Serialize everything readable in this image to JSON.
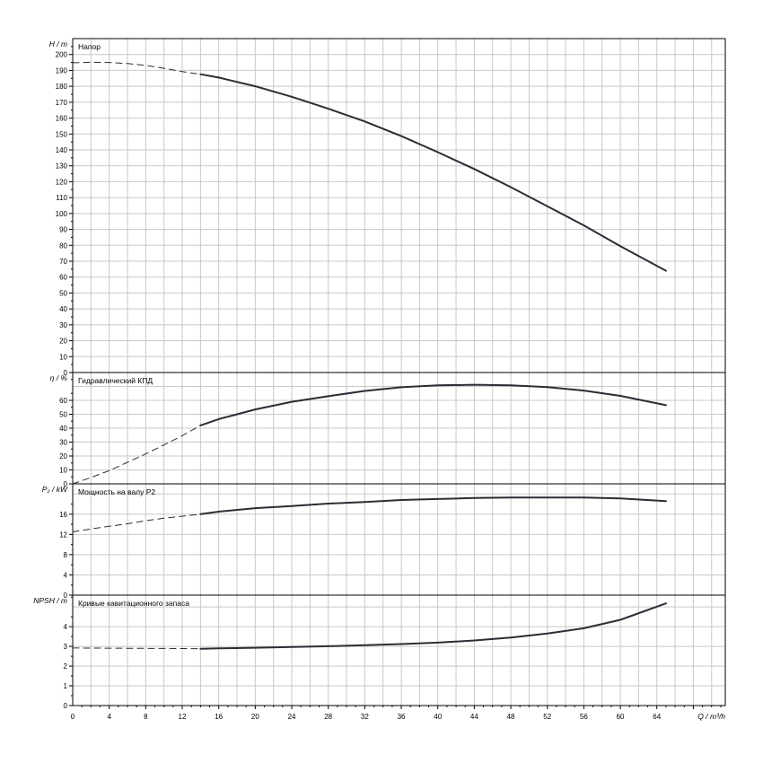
{
  "colors": {
    "background": "#ffffff",
    "grid": "#c8c8c8",
    "frame": "#000000",
    "curve": "#2b2d36"
  },
  "chart_data": [
    {
      "type": "line",
      "title": "Напор",
      "ylabel": "H / m",
      "xlabel": "Q / m³/h",
      "xlim": [
        0,
        71.5
      ],
      "ylim": [
        0,
        210
      ],
      "x_ticks": [
        0,
        4,
        8,
        12,
        16,
        20,
        24,
        28,
        32,
        36,
        40,
        44,
        48,
        52,
        56,
        60,
        64
      ],
      "y_ticks": [
        0,
        10,
        20,
        30,
        40,
        50,
        60,
        70,
        80,
        90,
        100,
        110,
        120,
        130,
        140,
        150,
        160,
        170,
        180,
        190,
        200
      ],
      "grid": true,
      "series": [
        {
          "style": "dashed",
          "x": [
            0,
            2,
            4,
            6,
            8,
            10,
            12,
            14
          ],
          "y": [
            194.8,
            195.1,
            195.0,
            194.3,
            193.1,
            191.3,
            189.2,
            187.6
          ]
        },
        {
          "style": "solid",
          "x": [
            14,
            16,
            20,
            24,
            28,
            32,
            36,
            40,
            44,
            48,
            52,
            56,
            60,
            65
          ],
          "y": [
            187.6,
            185.5,
            180.0,
            173.4,
            165.9,
            157.9,
            148.7,
            138.6,
            128.0,
            116.6,
            104.6,
            92.5,
            79.4,
            64.0
          ]
        }
      ]
    },
    {
      "type": "line",
      "title": "Гидравлический КПД",
      "ylabel": "η / %",
      "xlim": [
        0,
        71.5
      ],
      "ylim": [
        0,
        80
      ],
      "y_ticks": [
        0,
        10,
        20,
        30,
        40,
        50,
        60
      ],
      "grid": true,
      "series": [
        {
          "style": "dashed",
          "x": [
            0,
            2,
            4,
            6,
            8,
            10,
            12,
            14
          ],
          "y": [
            0,
            4.5,
            9.5,
            15.5,
            21.5,
            28.0,
            34.5,
            42.0
          ]
        },
        {
          "style": "solid",
          "x": [
            14,
            16,
            20,
            24,
            28,
            32,
            36,
            40,
            44,
            48,
            52,
            56,
            60,
            65
          ],
          "y": [
            42.0,
            46.5,
            53.5,
            59.0,
            63.0,
            66.8,
            69.4,
            70.8,
            71.2,
            70.8,
            69.5,
            67.0,
            63.2,
            56.5
          ]
        }
      ]
    },
    {
      "type": "line",
      "title": "Мощность на валу P2",
      "ylabel": "P₂ / kW",
      "xlim": [
        0,
        71.5
      ],
      "ylim": [
        0,
        22
      ],
      "y_ticks": [
        0,
        4,
        8,
        12,
        16
      ],
      "grid": true,
      "series": [
        {
          "style": "dashed",
          "x": [
            0,
            2,
            4,
            6,
            8,
            10,
            12,
            14
          ],
          "y": [
            12.5,
            13.1,
            13.6,
            14.1,
            14.7,
            15.2,
            15.6,
            16.0
          ]
        },
        {
          "style": "solid",
          "x": [
            14,
            16,
            20,
            24,
            28,
            32,
            36,
            40,
            44,
            48,
            52,
            56,
            60,
            65
          ],
          "y": [
            16.0,
            16.5,
            17.2,
            17.6,
            18.1,
            18.4,
            18.8,
            19.0,
            19.2,
            19.3,
            19.3,
            19.3,
            19.1,
            18.6
          ]
        }
      ]
    },
    {
      "type": "line",
      "title": "Кривые кавитационного запаса",
      "ylabel": "NPSH / m",
      "xlim": [
        0,
        71.5
      ],
      "ylim": [
        0,
        5.6
      ],
      "y_ticks": [
        0,
        1,
        2,
        3,
        4
      ],
      "grid": true,
      "series": [
        {
          "style": "dashed",
          "x": [
            0,
            4,
            8,
            12,
            14
          ],
          "y": [
            2.92,
            2.91,
            2.9,
            2.89,
            2.88
          ]
        },
        {
          "style": "solid",
          "x": [
            14,
            16,
            20,
            24,
            28,
            32,
            36,
            40,
            44,
            48,
            52,
            56,
            60,
            65
          ],
          "y": [
            2.88,
            2.9,
            2.93,
            2.97,
            3.01,
            3.06,
            3.12,
            3.19,
            3.3,
            3.45,
            3.65,
            3.92,
            4.35,
            5.18
          ]
        }
      ]
    }
  ]
}
